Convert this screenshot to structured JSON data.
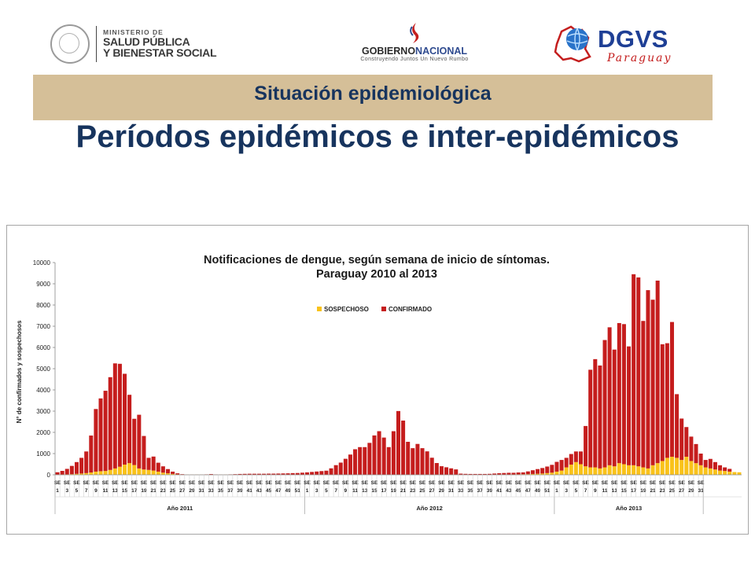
{
  "header": {
    "ministerio": {
      "line1": "MINISTERIO DE",
      "line2": "SALUD PÚBLICA",
      "line3": "Y BIENESTAR SOCIAL"
    },
    "gobierno": {
      "name_a": "GOBIERNO",
      "name_b": "NACIONAL",
      "tagline": "Construyendo Juntos Un Nuevo Rumbo"
    },
    "dgvs": {
      "name": "DGVS",
      "sub": "Paraguay"
    }
  },
  "banner": {
    "title": "Situación epidemiológica"
  },
  "slide_title": "Períodos epidémicos e inter-epidémicos",
  "colors": {
    "sospechoso": "#f9c21a",
    "confirmado": "#c51d1d",
    "title": "#17345e",
    "banner": "#d5bf98"
  },
  "chart_data": {
    "type": "bar",
    "stacked": true,
    "title": "Notificaciones de dengue, según semana de inicio de síntomas.",
    "subtitle": "Paraguay 2010 al 2013",
    "ylabel": "N° de confirmados y sospechosos",
    "ylim": [
      0,
      10000
    ],
    "yticks": [
      0,
      1000,
      2000,
      3000,
      4000,
      5000,
      6000,
      7000,
      8000,
      9000,
      10000
    ],
    "grid": false,
    "legend_position": "top-center",
    "week_prefix": "SE",
    "years": [
      {
        "label": "Año 2011",
        "weeks": 52
      },
      {
        "label": "Año 2012",
        "weeks": 52
      },
      {
        "label": "Año 2013",
        "weeks": 31
      }
    ],
    "series": [
      {
        "name": "SOSPECHOSO",
        "color": "#f9c21a",
        "values": [
          10,
          15,
          20,
          30,
          45,
          60,
          80,
          110,
          150,
          170,
          180,
          230,
          300,
          380,
          480,
          550,
          460,
          300,
          250,
          230,
          200,
          150,
          100,
          70,
          40,
          20,
          10,
          5,
          5,
          5,
          5,
          5,
          5,
          5,
          5,
          5,
          5,
          5,
          5,
          5,
          5,
          5,
          5,
          5,
          5,
          5,
          5,
          5,
          5,
          5,
          5,
          5,
          5,
          5,
          5,
          5,
          5,
          5,
          5,
          5,
          5,
          5,
          5,
          5,
          5,
          5,
          5,
          5,
          5,
          5,
          5,
          5,
          5,
          5,
          5,
          5,
          5,
          5,
          5,
          5,
          5,
          5,
          5,
          5,
          5,
          5,
          5,
          5,
          5,
          5,
          5,
          5,
          10,
          10,
          10,
          15,
          20,
          25,
          30,
          40,
          50,
          60,
          80,
          100,
          150,
          200,
          350,
          480,
          600,
          500,
          400,
          350,
          350,
          300,
          350,
          450,
          400,
          550,
          500,
          450,
          450,
          400,
          350,
          300,
          450,
          550,
          650,
          800,
          850,
          800,
          700,
          850,
          650,
          550,
          450,
          350,
          300,
          250,
          200,
          180,
          150,
          130,
          120
        ]
      },
      {
        "name": "CONFIRMADO",
        "color": "#c51d1d",
        "values": [
          110,
          170,
          260,
          390,
          555,
          740,
          1020,
          1740,
          2950,
          3430,
          3780,
          4370,
          4950,
          4850,
          4280,
          3220,
          2180,
          2530,
          1580,
          570,
          660,
          420,
          300,
          200,
          110,
          50,
          20,
          5,
          5,
          5,
          5,
          15,
          30,
          10,
          5,
          5,
          15,
          25,
          35,
          40,
          45,
          45,
          45,
          45,
          50,
          50,
          55,
          60,
          65,
          75,
          80,
          95,
          110,
          130,
          150,
          170,
          190,
          300,
          450,
          570,
          750,
          950,
          1200,
          1300,
          1300,
          1500,
          1850,
          2050,
          1750,
          1300,
          2050,
          3000,
          2550,
          1550,
          1250,
          1450,
          1250,
          1100,
          800,
          550,
          400,
          350,
          300,
          250,
          50,
          40,
          35,
          35,
          35,
          35,
          40,
          55,
          65,
          75,
          85,
          80,
          90,
          90,
          130,
          175,
          220,
          260,
          310,
          370,
          460,
          500,
          450,
          500,
          500,
          600,
          1900,
          4600,
          5100,
          4850,
          6000,
          6500,
          5500,
          6600,
          6600,
          5600,
          9000,
          8900,
          6900,
          8400,
          7800,
          8600,
          5500,
          5400,
          6350,
          3000,
          1950,
          1400,
          1150,
          900,
          550,
          350,
          450,
          350,
          250,
          170,
          130
        ]
      }
    ]
  }
}
